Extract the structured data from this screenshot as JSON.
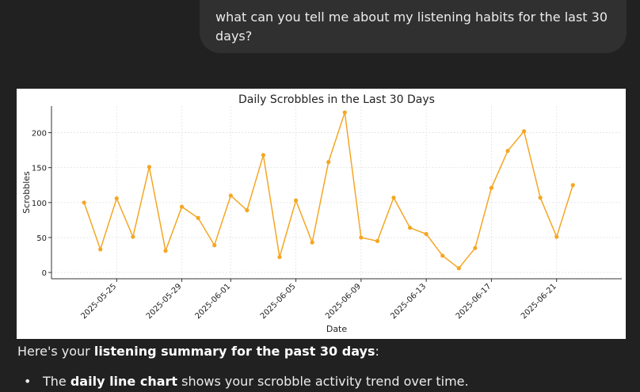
{
  "conversation": {
    "user_message": "what can you tell me about my listening habits for the last 30 days?"
  },
  "response": {
    "summary_prefix": "Here's your ",
    "summary_bold": "listening summary for the past 30 days",
    "summary_suffix": ":",
    "bullets": [
      {
        "prefix": "The ",
        "bold": "daily line chart",
        "suffix": " shows your scrobble activity trend over time."
      }
    ]
  },
  "chart_data": {
    "type": "line",
    "title": "Daily Scrobbles in the Last 30 Days",
    "xlabel": "Date",
    "ylabel": "Scrobbles",
    "color": "#f5a623",
    "grid": true,
    "ylim": [
      -9,
      238
    ],
    "yticks": [
      0,
      50,
      100,
      150,
      200
    ],
    "xlim": [
      "2025-05-21",
      "2025-06-25"
    ],
    "xticks": [
      "2025-05-25",
      "2025-05-29",
      "2025-06-01",
      "2025-06-05",
      "2025-06-09",
      "2025-06-13",
      "2025-06-17",
      "2025-06-21"
    ],
    "x": [
      "2025-05-23",
      "2025-05-24",
      "2025-05-25",
      "2025-05-26",
      "2025-05-27",
      "2025-05-28",
      "2025-05-29",
      "2025-05-30",
      "2025-05-31",
      "2025-06-01",
      "2025-06-02",
      "2025-06-03",
      "2025-06-04",
      "2025-06-05",
      "2025-06-06",
      "2025-06-07",
      "2025-06-08",
      "2025-06-09",
      "2025-06-10",
      "2025-06-11",
      "2025-06-12",
      "2025-06-13",
      "2025-06-14",
      "2025-06-15",
      "2025-06-16",
      "2025-06-17",
      "2025-06-18",
      "2025-06-19",
      "2025-06-20",
      "2025-06-21",
      "2025-06-22"
    ],
    "values": [
      100,
      33,
      106,
      51,
      151,
      31,
      94,
      78,
      39,
      110,
      89,
      168,
      22,
      103,
      43,
      158,
      229,
      50,
      45,
      107,
      64,
      55,
      24,
      6,
      35,
      121,
      174,
      202,
      107,
      51,
      125
    ]
  }
}
